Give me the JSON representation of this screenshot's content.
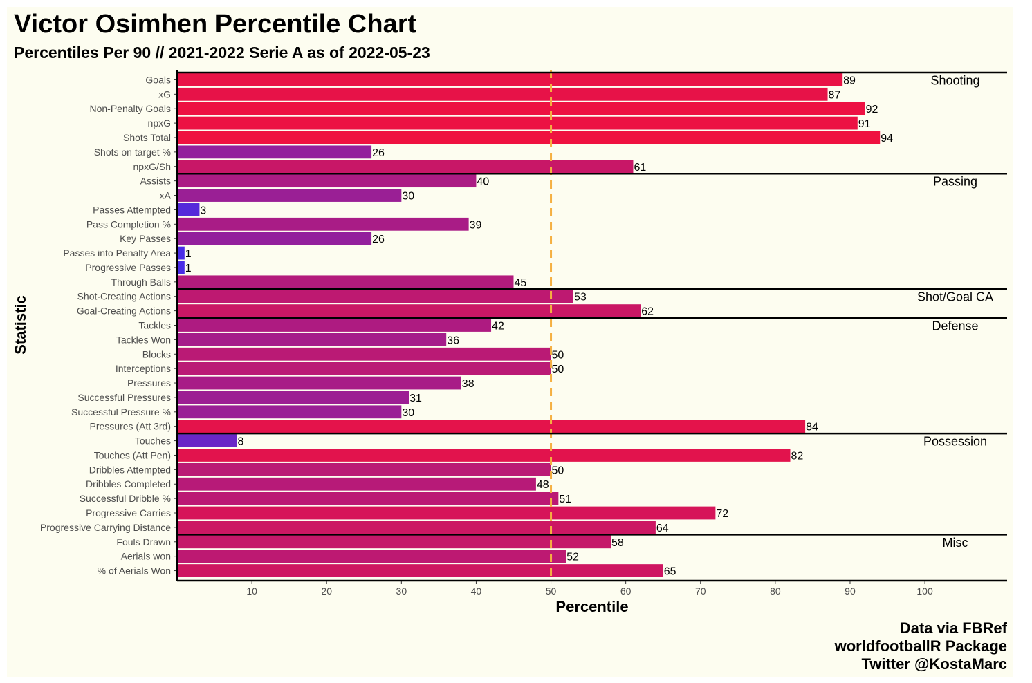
{
  "title": "Victor Osimhen Percentile Chart",
  "subtitle": "Percentiles Per 90 // 2021-2022 Serie A as of 2022-05-23",
  "caption": [
    "Data via FBRef",
    "worldfootballR Package",
    "Twitter @KostaMarc"
  ],
  "colors": {
    "background": "#fdfdf0",
    "reference_line": "#f5b041",
    "low": "#3a2ef5",
    "high": "#f5103a"
  },
  "chart_data": {
    "type": "bar",
    "orientation": "horizontal",
    "xlabel": "Percentile",
    "ylabel": "Statistic",
    "xticks": [
      10,
      20,
      30,
      40,
      50,
      60,
      70,
      80,
      90,
      100
    ],
    "xlim": [
      0,
      111
    ],
    "reference_line": 50,
    "grid": false,
    "categories": [
      "Goals",
      "xG",
      "Non-Penalty Goals",
      "npxG",
      "Shots Total",
      "Shots on target %",
      "npxG/Sh",
      "Assists",
      "xA",
      "Passes Attempted",
      "Pass Completion %",
      "Key Passes",
      "Passes into Penalty Area",
      "Progressive Passes",
      "Through Balls",
      "Shot-Creating Actions",
      "Goal-Creating Actions",
      "Tackles",
      "Tackles Won",
      "Blocks",
      "Interceptions",
      "Pressures",
      "Successful Pressures",
      "Successful Pressure %",
      "Pressures (Att 3rd)",
      "Touches",
      "Touches (Att Pen)",
      "Dribbles Attempted",
      "Dribbles Completed",
      "Successful Dribble %",
      "Progressive Carries",
      "Progressive Carrying Distance",
      "Fouls Drawn",
      "Aerials won",
      "% of Aerials Won"
    ],
    "values": [
      89,
      87,
      92,
      91,
      94,
      26,
      61,
      40,
      30,
      3,
      39,
      26,
      1,
      1,
      45,
      53,
      62,
      42,
      36,
      50,
      50,
      38,
      31,
      30,
      84,
      8,
      82,
      50,
      48,
      51,
      72,
      64,
      58,
      52,
      65
    ],
    "groups": [
      {
        "name": "Shooting",
        "start": 0
      },
      {
        "name": "Passing",
        "start": 7
      },
      {
        "name": "Shot/Goal CA",
        "start": 15
      },
      {
        "name": "Defense",
        "start": 17
      },
      {
        "name": "Possession",
        "start": 25
      },
      {
        "name": "Misc",
        "start": 32
      }
    ]
  }
}
